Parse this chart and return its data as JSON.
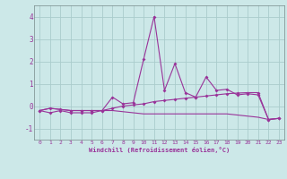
{
  "xlabel": "Windchill (Refroidissement éolien,°C)",
  "x": [
    0,
    1,
    2,
    3,
    4,
    5,
    6,
    7,
    8,
    9,
    10,
    11,
    12,
    13,
    14,
    15,
    16,
    17,
    18,
    19,
    20,
    21,
    22,
    23
  ],
  "line1": [
    -0.2,
    -0.3,
    -0.2,
    -0.3,
    -0.3,
    -0.3,
    -0.2,
    0.4,
    0.1,
    0.15,
    2.1,
    4.0,
    0.7,
    1.9,
    0.6,
    0.4,
    1.3,
    0.7,
    0.75,
    0.5,
    0.55,
    0.5,
    -0.6,
    -0.55
  ],
  "line2": [
    -0.2,
    -0.1,
    -0.15,
    -0.2,
    -0.2,
    -0.2,
    -0.2,
    -0.1,
    0.0,
    0.05,
    0.1,
    0.2,
    0.25,
    0.3,
    0.35,
    0.4,
    0.45,
    0.5,
    0.55,
    0.58,
    0.6,
    0.6,
    -0.6,
    -0.55
  ],
  "line3": [
    -0.2,
    -0.1,
    -0.15,
    -0.2,
    -0.2,
    -0.2,
    -0.2,
    -0.2,
    -0.25,
    -0.3,
    -0.35,
    -0.35,
    -0.35,
    -0.35,
    -0.35,
    -0.35,
    -0.35,
    -0.35,
    -0.35,
    -0.4,
    -0.45,
    -0.5,
    -0.6,
    -0.55
  ],
  "line_color": "#993399",
  "bg_color": "#cce8e8",
  "grid_color": "#aacccc",
  "ylim": [
    -1.5,
    4.5
  ],
  "xlim": [
    -0.5,
    23.5
  ],
  "yticks": [
    -1,
    0,
    1,
    2,
    3,
    4
  ],
  "xtick_fontsize": 4.5,
  "ytick_fontsize": 5.5,
  "xlabel_fontsize": 5.0,
  "linewidth": 0.8,
  "markersize": 2.0
}
